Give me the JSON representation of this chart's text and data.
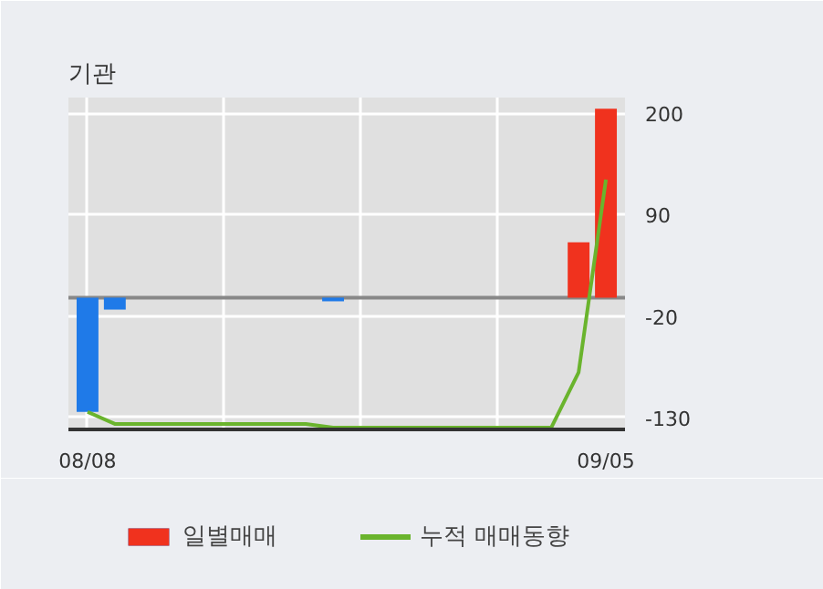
{
  "chart_data": {
    "type": "bar",
    "title": "기관",
    "categories": [
      "08/08",
      null,
      null,
      null,
      null,
      null,
      null,
      null,
      null,
      null,
      null,
      null,
      null,
      null,
      null,
      null,
      null,
      null,
      null,
      "09/05"
    ],
    "series": [
      {
        "name": "일별매매",
        "values": [
          -124,
          -13,
          0,
          0,
          0,
          0,
          0,
          0,
          0,
          -4,
          0,
          0,
          0,
          0,
          0,
          0,
          0,
          0,
          60,
          205
        ],
        "colors": [
          "#1f7ae8",
          "#1f7ae8",
          "#1f7ae8",
          "#1f7ae8",
          "#1f7ae8",
          "#1f7ae8",
          "#1f7ae8",
          "#1f7ae8",
          "#1f7ae8",
          "#1f7ae8",
          "#1f7ae8",
          "#1f7ae8",
          "#1f7ae8",
          "#1f7ae8",
          "#1f7ae8",
          "#1f7ae8",
          "#1f7ae8",
          "#1f7ae8",
          "#f0321e",
          "#f0321e"
        ]
      },
      {
        "name": "누적 매매동향",
        "type": "line",
        "color": "#6ab42d",
        "values": [
          -124,
          -137,
          -137,
          -137,
          -137,
          -137,
          -137,
          -137,
          -137,
          -141,
          -141,
          -141,
          -141,
          -141,
          -141,
          -141,
          -141,
          -141,
          -81,
          128
        ]
      }
    ],
    "ylim": [
      -143,
      217
    ],
    "yticks": [
      200,
      90,
      -20,
      -130
    ],
    "ref_lines": [
      {
        "axis": "y",
        "value": 0,
        "label": null,
        "color": "#888888"
      }
    ],
    "grid": true,
    "legend": "bottom",
    "marker": "none",
    "line_style": "solid"
  }
}
